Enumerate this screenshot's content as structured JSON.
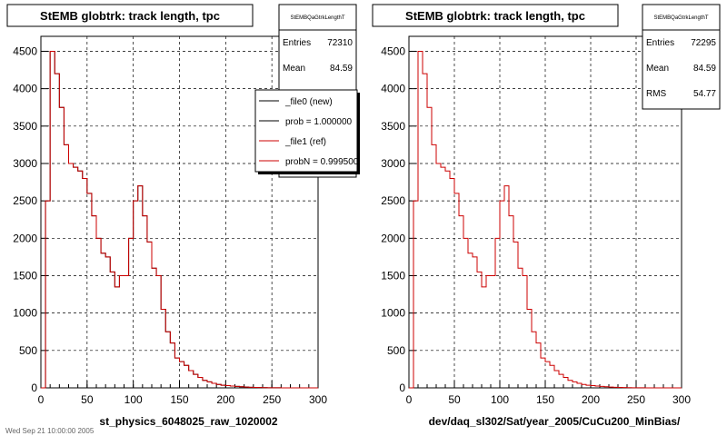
{
  "footer_text": "Wed Sep 21 10:00:00 2005",
  "colors": {
    "ref": "#cc0000",
    "new": "#000000",
    "grid": "#000000",
    "frame": "#000000"
  },
  "panels": [
    {
      "title": "StEMB globtrk: track length, tpc",
      "xlabel": "st_physics_6048025_raw_1020002",
      "stats": {
        "name": "StEMBQaGtrkLengthT",
        "rows": [
          {
            "label": "Entries",
            "value": "72310"
          },
          {
            "label": "Mean",
            "value": "84.59"
          }
        ]
      },
      "legend": [
        {
          "label": "_file0 (new)",
          "color": "#000000"
        },
        {
          "label": "prob = 1.000000",
          "color": "#000000"
        },
        {
          "label": "_file1 (ref)",
          "color": "#cc0000"
        },
        {
          "label": "probN = 0.999500",
          "color": "#cc0000"
        }
      ]
    },
    {
      "title": "StEMB globtrk: track length, tpc",
      "xlabel": "dev/daq_sl302/Sat/year_2005/CuCu200_MinBias/",
      "stats": {
        "name": "StEMBQaGtrkLengthT",
        "rows": [
          {
            "label": "Entries",
            "value": "72295"
          },
          {
            "label": "Mean",
            "value": "84.59"
          },
          {
            "label": "RMS",
            "value": "54.77"
          }
        ]
      },
      "legend": []
    }
  ],
  "chart_data": [
    {
      "type": "bar",
      "title": "StEMB globtrk: track length, tpc",
      "xlabel": "st_physics_6048025_raw_1020002",
      "xlim": [
        0,
        300
      ],
      "ylim": [
        0,
        4700
      ],
      "xticks": [
        0,
        50,
        100,
        150,
        200,
        250,
        300
      ],
      "yticks": [
        0,
        500,
        1000,
        1500,
        2000,
        2500,
        3000,
        3500,
        4000,
        4500
      ],
      "grid": true,
      "bin_width": 5,
      "bin_start": 0,
      "series": [
        {
          "name": "_file0 (new)",
          "values": [
            0,
            2500,
            4500,
            4200,
            3750,
            3250,
            3000,
            2950,
            2900,
            2800,
            2600,
            2300,
            2000,
            1800,
            1750,
            1550,
            1350,
            1500,
            1500,
            2000,
            2500,
            2700,
            2300,
            1950,
            1600,
            1500,
            1050,
            750,
            600,
            400,
            350,
            300,
            230,
            180,
            140,
            100,
            80,
            60,
            45,
            35,
            30,
            25,
            20,
            15,
            10,
            8,
            6,
            4,
            3,
            2,
            1,
            1,
            0,
            0,
            0,
            0,
            0,
            0,
            0,
            0
          ]
        },
        {
          "name": "_file1 (ref)",
          "values": [
            0,
            2500,
            4500,
            4200,
            3750,
            3250,
            3000,
            2950,
            2900,
            2800,
            2600,
            2300,
            2000,
            1800,
            1750,
            1550,
            1350,
            1500,
            1500,
            2000,
            2500,
            2700,
            2300,
            1950,
            1600,
            1500,
            1050,
            750,
            600,
            400,
            350,
            300,
            230,
            180,
            140,
            100,
            80,
            60,
            45,
            35,
            30,
            25,
            20,
            15,
            10,
            8,
            6,
            4,
            3,
            2,
            1,
            1,
            0,
            0,
            0,
            0,
            0,
            0,
            0,
            0
          ]
        }
      ]
    },
    {
      "type": "bar",
      "title": "StEMB globtrk: track length, tpc",
      "xlabel": "dev/daq_sl302/Sat/year_2005/CuCu200_MinBias/",
      "xlim": [
        0,
        300
      ],
      "ylim": [
        0,
        4700
      ],
      "xticks": [
        0,
        50,
        100,
        150,
        200,
        250,
        300
      ],
      "yticks": [
        0,
        500,
        1000,
        1500,
        2000,
        2500,
        3000,
        3500,
        4000,
        4500
      ],
      "grid": true,
      "bin_width": 5,
      "bin_start": 0,
      "series": [
        {
          "name": "",
          "values": [
            0,
            2500,
            4500,
            4200,
            3750,
            3250,
            3000,
            2950,
            2900,
            2800,
            2600,
            2300,
            2000,
            1800,
            1750,
            1550,
            1350,
            1500,
            1500,
            2000,
            2500,
            2700,
            2300,
            1950,
            1600,
            1500,
            1050,
            750,
            600,
            400,
            350,
            300,
            230,
            180,
            140,
            100,
            80,
            60,
            45,
            35,
            30,
            25,
            20,
            15,
            10,
            8,
            6,
            4,
            3,
            2,
            1,
            1,
            0,
            0,
            0,
            0,
            0,
            0,
            0,
            0
          ]
        }
      ]
    }
  ]
}
